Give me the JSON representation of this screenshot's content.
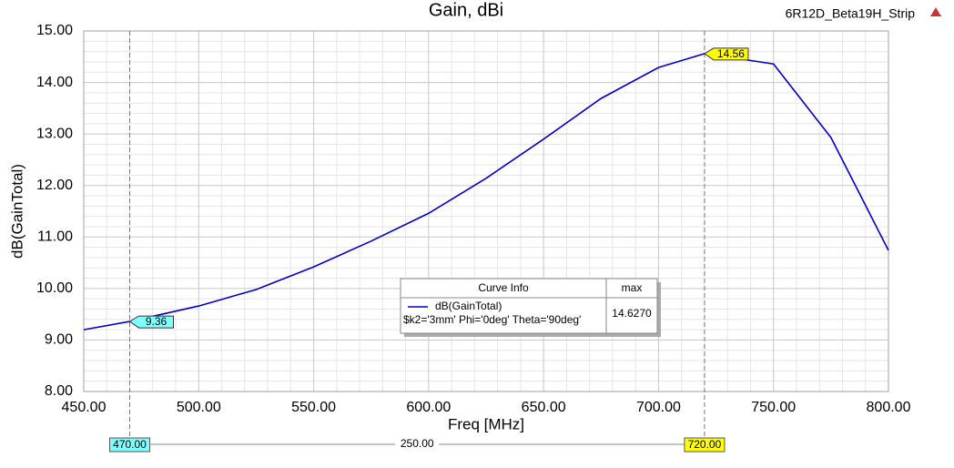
{
  "chart_data": {
    "type": "line",
    "title": "Gain, dBi",
    "design_name": "6R12D_Beta19H_Strip",
    "x_label": "Freq [MHz]",
    "y_label": "dB(GainTotal)",
    "x": [
      450,
      470,
      500,
      525,
      550,
      575,
      600,
      625,
      650,
      675,
      700,
      720,
      750,
      775,
      800
    ],
    "series": [
      {
        "name": "dB(GainTotal)",
        "params": "$k2='3mm' Phi='0deg' Theta='90deg'",
        "color": "#0000cc",
        "values": [
          9.2,
          9.36,
          9.66,
          9.98,
          10.42,
          10.92,
          11.46,
          12.14,
          12.9,
          13.69,
          14.29,
          14.56,
          14.36,
          12.93,
          10.74
        ],
        "max": "14.6270"
      }
    ],
    "legend_header": [
      "Curve Info",
      "max"
    ],
    "xlim": [
      450,
      800
    ],
    "ylim": [
      8,
      15
    ],
    "xticks": [
      {
        "value": 450,
        "label": "450.00"
      },
      {
        "value": 500,
        "label": "500.00"
      },
      {
        "value": 550,
        "label": "550.00"
      },
      {
        "value": 600,
        "label": "600.00"
      },
      {
        "value": 650,
        "label": "650.00"
      },
      {
        "value": 700,
        "label": "700.00"
      },
      {
        "value": 750,
        "label": "750.00"
      },
      {
        "value": 800,
        "label": "800.00"
      }
    ],
    "yticks": [
      {
        "value": 8,
        "label": "8.00"
      },
      {
        "value": 9,
        "label": "9.00"
      },
      {
        "value": 10,
        "label": "10.00"
      },
      {
        "value": 11,
        "label": "11.00"
      },
      {
        "value": 12,
        "label": "12.00"
      },
      {
        "value": 13,
        "label": "13.00"
      },
      {
        "value": 14,
        "label": "14.00"
      },
      {
        "value": 15,
        "label": "15.00"
      }
    ],
    "minor_divisions": 5,
    "grid": true,
    "markers": [
      {
        "x": {
          "value": 470,
          "label": "470.00"
        },
        "y": 9.36,
        "color": "#80ffff"
      },
      {
        "x": {
          "value": 720,
          "label": "720.00"
        },
        "y": 14.56,
        "color": "#ffff00"
      }
    ],
    "marker_delta": {
      "value": 250,
      "label": "250.00"
    }
  }
}
